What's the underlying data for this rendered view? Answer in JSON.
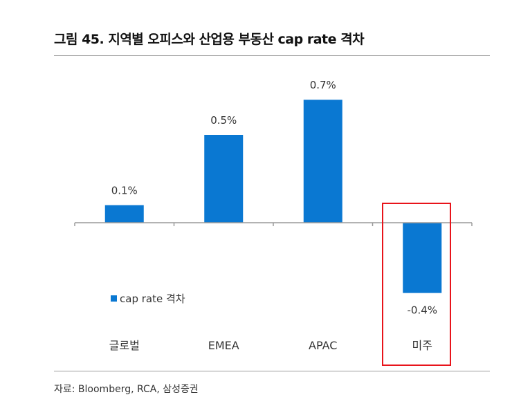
{
  "title": "그림 45. 지역별 오피스와 산업용 부동산 cap rate 격차",
  "source": "자료: Bloomberg, RCA, 삼성증권",
  "colors": {
    "bar": "#0a78d2",
    "highlight": "#e8141b",
    "axis": "#9a9a9a"
  },
  "chart_data": {
    "type": "bar",
    "categories": [
      "글로벌",
      "EMEA",
      "APAC",
      "미주"
    ],
    "series": [
      {
        "name": "cap rate 격차",
        "values": [
          0.1,
          0.5,
          0.7,
          -0.4
        ]
      }
    ],
    "data_labels": [
      "0.1%",
      "0.5%",
      "0.7%",
      "-0.4%"
    ],
    "unit": "%",
    "ylim": [
      -0.5,
      0.8
    ],
    "grid": false,
    "legend": "bottom-left",
    "highlighted_category": "미주"
  }
}
